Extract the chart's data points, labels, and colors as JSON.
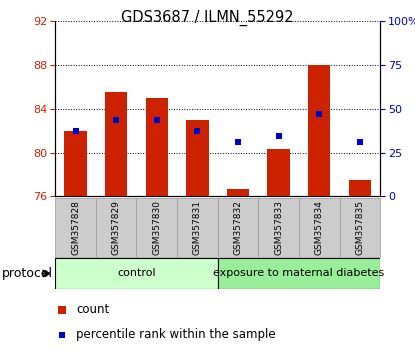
{
  "title": "GDS3687 / ILMN_55292",
  "samples": [
    "GSM357828",
    "GSM357829",
    "GSM357830",
    "GSM357831",
    "GSM357832",
    "GSM357833",
    "GSM357834",
    "GSM357835"
  ],
  "bar_tops": [
    82.0,
    85.5,
    85.0,
    83.0,
    76.7,
    80.3,
    88.0,
    77.5
  ],
  "bar_base": 76.0,
  "pct_vals": [
    82.0,
    83.0,
    83.0,
    82.0,
    81.0,
    81.5,
    83.5,
    81.0
  ],
  "ylim_left": [
    76,
    92
  ],
  "yticks_left": [
    76,
    80,
    84,
    88,
    92
  ],
  "yticks_right": [
    0,
    25,
    50,
    75,
    100
  ],
  "bar_color": "#CC2200",
  "square_color": "#0000CC",
  "control_bg": "#CCFFCC",
  "diabetes_bg": "#99EE99",
  "xlabel_bg": "#CCCCCC",
  "group_labels": [
    "control",
    "exposure to maternal diabetes"
  ],
  "n_control": 4,
  "legend_red": "count",
  "legend_blue": "percentile rank within the sample",
  "protocol_label": "protocol"
}
